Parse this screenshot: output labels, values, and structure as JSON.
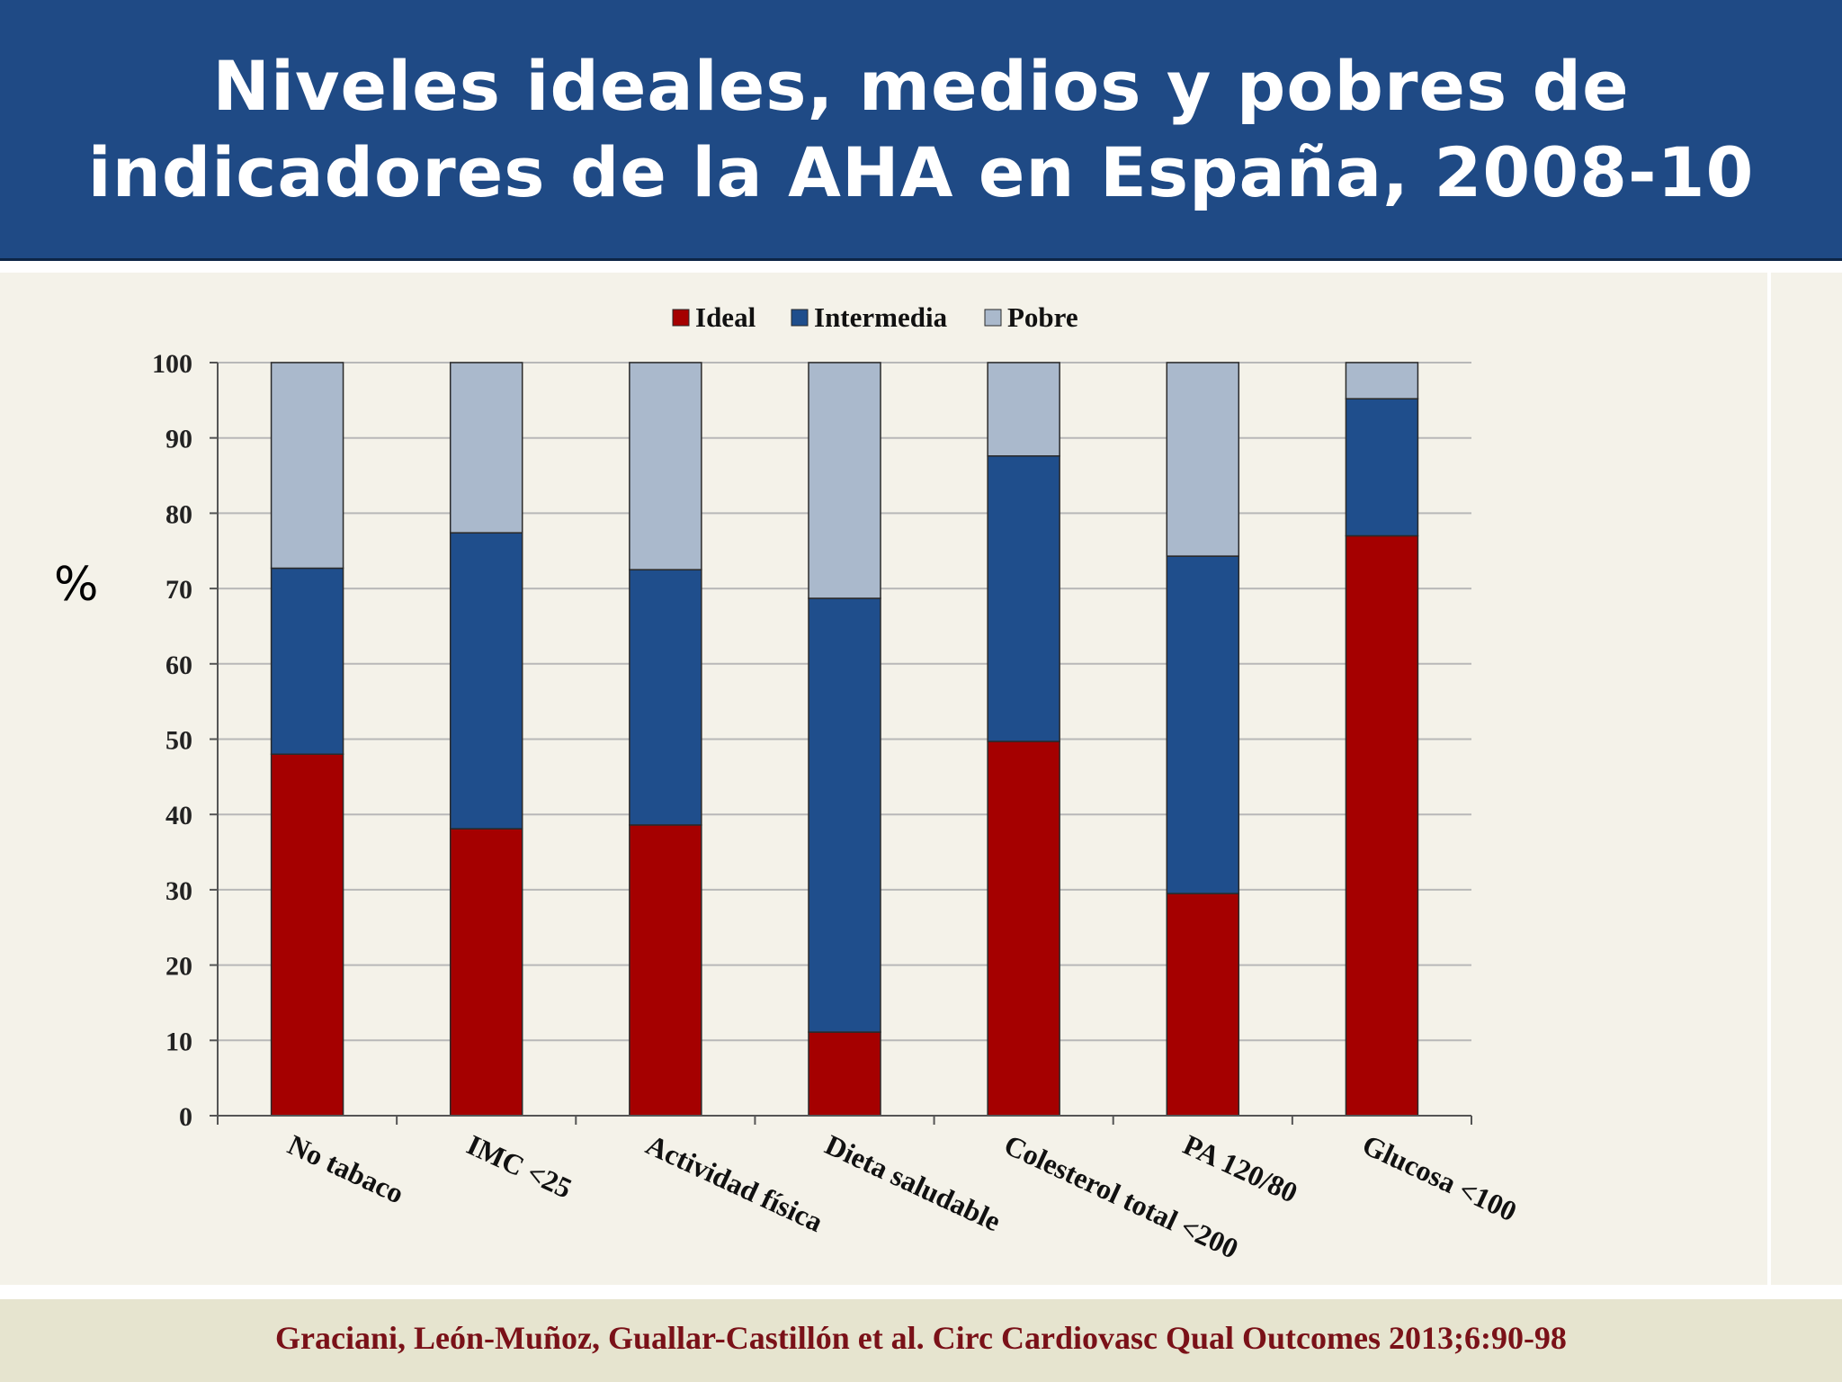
{
  "slide": {
    "title_line1": "Niveles ideales, medios y pobres de",
    "title_line2": "indicadores de la AHA en España, 2008-10",
    "citation": "Graciani, León-Muñoz, Guallar-Castillón et al. Circ Cardiovasc Qual Outcomes 2013;6:90-98",
    "y_unit_label": "%"
  },
  "colors": {
    "header_bg": "#1f4a85",
    "ideal": "#a50000",
    "intermedia": "#1f4e8c",
    "pobre": "#aab9cc",
    "citation": "#7a1118"
  },
  "chart_data": {
    "type": "bar",
    "stacked": true,
    "categories": [
      "No tabaco",
      "IMC <25",
      "Actividad física",
      "Dieta saludable",
      "Colesterol total <200",
      "PA 120/80",
      "Glucosa <100"
    ],
    "series": [
      {
        "name": "Ideal",
        "values": [
          48.0,
          38.1,
          38.6,
          11.1,
          49.7,
          29.5,
          77.0
        ]
      },
      {
        "name": "Intermedia",
        "values": [
          24.7,
          39.3,
          33.9,
          57.6,
          37.9,
          44.8,
          18.2
        ]
      },
      {
        "name": "Pobre",
        "values": [
          27.3,
          22.6,
          27.5,
          31.3,
          12.4,
          25.7,
          4.8
        ]
      }
    ],
    "ylim": [
      0,
      100
    ],
    "yticks": [
      0,
      10,
      20,
      30,
      40,
      50,
      60,
      70,
      80,
      90,
      100
    ],
    "ylabel": "%",
    "xlabel": "",
    "title": "",
    "grid": true,
    "legend_position": "top-center"
  }
}
